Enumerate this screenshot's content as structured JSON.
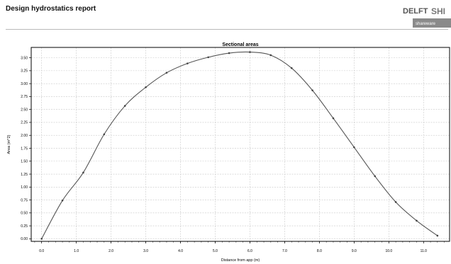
{
  "report": {
    "title": "Design hydrostatics report"
  },
  "logo": {
    "brand_left": "DELFT",
    "brand_right": "SHI",
    "tagline": "shareware"
  },
  "chart_data": {
    "type": "line",
    "title": "Sectional areas",
    "xlabel": "Distance from app (m)",
    "ylabel": "Area (m^2)",
    "xlim": [
      -0.3,
      11.75
    ],
    "ylim": [
      -0.05,
      3.7
    ],
    "xticks": [
      "0.0",
      "1.0",
      "2.0",
      "3.0",
      "4.0",
      "5.0",
      "6.0",
      "7.0",
      "8.0",
      "9.0",
      "10.0",
      "11.0"
    ],
    "xtick_values": [
      0,
      1,
      2,
      3,
      4,
      5,
      6,
      7,
      8,
      9,
      10,
      11
    ],
    "yticks": [
      "0.00",
      "0.25",
      "0.50",
      "0.75",
      "1.00",
      "1.25",
      "1.50",
      "1.75",
      "2.00",
      "2.25",
      "2.50",
      "2.75",
      "3.00",
      "3.25",
      "3.50"
    ],
    "ytick_values": [
      0,
      0.25,
      0.5,
      0.75,
      1.0,
      1.25,
      1.5,
      1.75,
      2.0,
      2.25,
      2.5,
      2.75,
      3.0,
      3.25,
      3.5
    ],
    "grid": true,
    "series": [
      {
        "x": [
          0.0,
          0.6,
          1.2,
          1.8,
          2.4,
          3.0,
          3.6,
          4.2,
          4.8,
          5.4,
          6.0,
          6.6,
          7.2,
          7.8,
          8.4,
          9.0,
          9.6,
          10.2,
          10.8,
          11.4
        ],
        "y": [
          0.0,
          0.74,
          1.28,
          2.02,
          2.57,
          2.93,
          3.21,
          3.39,
          3.51,
          3.59,
          3.61,
          3.55,
          3.3,
          2.87,
          2.33,
          1.77,
          1.21,
          0.71,
          0.35,
          0.06
        ]
      }
    ],
    "colors": {
      "line": "#555555",
      "marker": "#444444",
      "grid": "#c8c8c8",
      "frame": "#000000"
    }
  }
}
